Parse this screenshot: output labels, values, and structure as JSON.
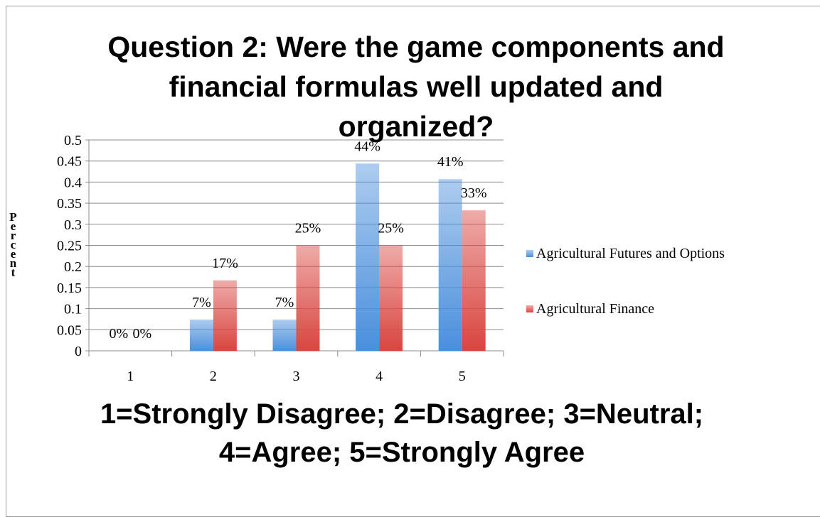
{
  "chart_data": {
    "type": "bar",
    "title": "Question 2: Were the game components and financial formulas well updated and organized?",
    "x_label": "1=Strongly Disagree; 2=Disagree; 3=Neutral; 4=Agree; 5=Strongly Agree",
    "y_label": "Percent",
    "categories": [
      "1",
      "2",
      "3",
      "4",
      "5"
    ],
    "series": [
      {
        "name": "Agricultural Futures and Options",
        "color": "#4a8fdc",
        "values": [
          0,
          0.074,
          0.074,
          0.444,
          0.407
        ],
        "value_labels": [
          "0%",
          "7%",
          "7%",
          "44%",
          "41%"
        ]
      },
      {
        "name": "Agricultural Finance",
        "color": "#d9453f",
        "values": [
          0,
          0.167,
          0.25,
          0.25,
          0.333
        ],
        "value_labels": [
          "0%",
          "17%",
          "25%",
          "25%",
          "33%"
        ]
      }
    ],
    "ylim": [
      0,
      0.5
    ],
    "yticks": [
      0,
      0.05,
      0.1,
      0.15,
      0.2,
      0.25,
      0.3,
      0.35,
      0.4,
      0.45,
      0.5
    ],
    "grid": true,
    "legend": "right"
  }
}
